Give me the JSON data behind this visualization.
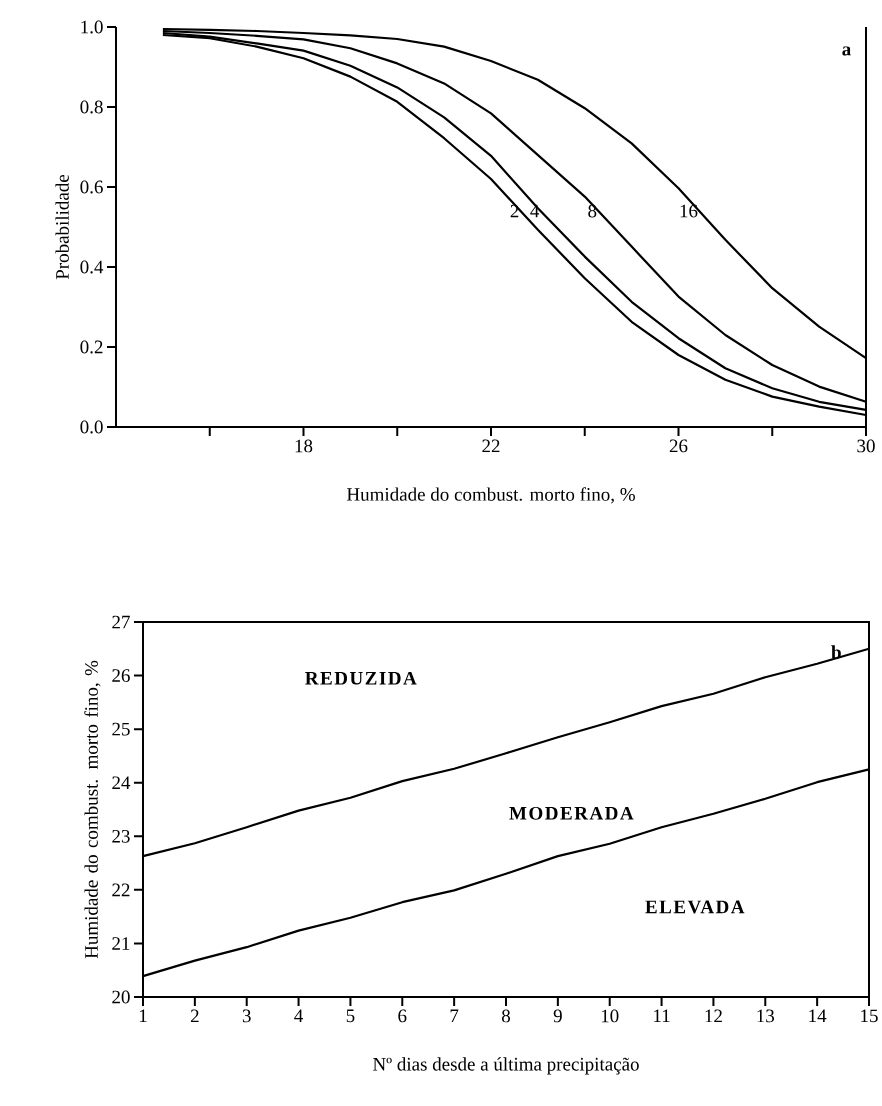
{
  "chart_data": [
    {
      "type": "line",
      "xlabel": "Humidade do combust. morto fino, %",
      "ylabel": "Probabilidade",
      "xlim": [
        14,
        30
      ],
      "ylim": [
        0,
        1
      ],
      "xticks": [
        {
          "value": 16,
          "label": null
        },
        18,
        {
          "value": 20,
          "label": null
        },
        22,
        {
          "value": 24,
          "label": null
        },
        26,
        {
          "value": 28,
          "label": null
        },
        30
      ],
      "yticks": [
        {
          "value": 0,
          "label": "0.0"
        },
        0.2,
        0.4,
        0.6,
        0.8,
        {
          "value": 1,
          "label": "1.0"
        }
      ],
      "x": [
        15,
        16,
        17,
        18,
        19,
        20,
        21,
        22,
        23,
        24,
        25,
        26,
        27,
        28,
        29,
        30
      ],
      "annotations": [
        "a"
      ],
      "series": [
        {
          "name": "2",
          "color": "#000000",
          "values": [
            0.98,
            0.972,
            0.951,
            0.922,
            0.876,
            0.813,
            0.722,
            0.62,
            0.493,
            0.372,
            0.263,
            0.18,
            0.118,
            0.076,
            0.051,
            0.03
          ]
        },
        {
          "name": "4",
          "color": "#000000",
          "values": [
            0.985,
            0.976,
            0.959,
            0.941,
            0.903,
            0.849,
            0.774,
            0.678,
            0.547,
            0.426,
            0.313,
            0.222,
            0.147,
            0.097,
            0.063,
            0.043
          ]
        },
        {
          "name": "8",
          "color": "#000000",
          "values": [
            0.99,
            0.985,
            0.978,
            0.969,
            0.947,
            0.909,
            0.859,
            0.784,
            0.68,
            0.576,
            0.451,
            0.326,
            0.23,
            0.155,
            0.101,
            0.063
          ]
        },
        {
          "name": "16",
          "color": "#000000",
          "values": [
            0.995,
            0.993,
            0.99,
            0.985,
            0.979,
            0.97,
            0.951,
            0.915,
            0.868,
            0.797,
            0.709,
            0.597,
            0.468,
            0.347,
            0.251,
            0.172
          ]
        }
      ]
    },
    {
      "type": "line",
      "xlabel": "Nº dias desde a última precipitação",
      "ylabel": "Humidade do combust. morto fino, %",
      "xlim": [
        1,
        15
      ],
      "ylim": [
        20,
        27
      ],
      "xticks": [
        1,
        2,
        3,
        4,
        5,
        6,
        7,
        8,
        9,
        10,
        11,
        12,
        13,
        14,
        15
      ],
      "yticks": [
        20,
        21,
        22,
        23,
        24,
        25,
        26,
        27
      ],
      "x": [
        1,
        2,
        3,
        4,
        5,
        6,
        7,
        8,
        9,
        10,
        11,
        12,
        13,
        14,
        15
      ],
      "annotations": [
        "REDUZIDA",
        "MODERADA",
        "ELEVADA",
        "b"
      ],
      "series": [
        {
          "color": "#000000",
          "values": [
            22.63,
            22.87,
            23.17,
            23.48,
            23.72,
            24.03,
            24.26,
            24.55,
            24.85,
            25.13,
            25.43,
            25.66,
            25.97,
            26.22,
            26.5
          ]
        },
        {
          "color": "#000000",
          "values": [
            20.39,
            20.68,
            20.93,
            21.24,
            21.48,
            21.77,
            21.99,
            22.3,
            22.63,
            22.86,
            23.17,
            23.42,
            23.7,
            24.01,
            24.25
          ]
        }
      ]
    }
  ]
}
